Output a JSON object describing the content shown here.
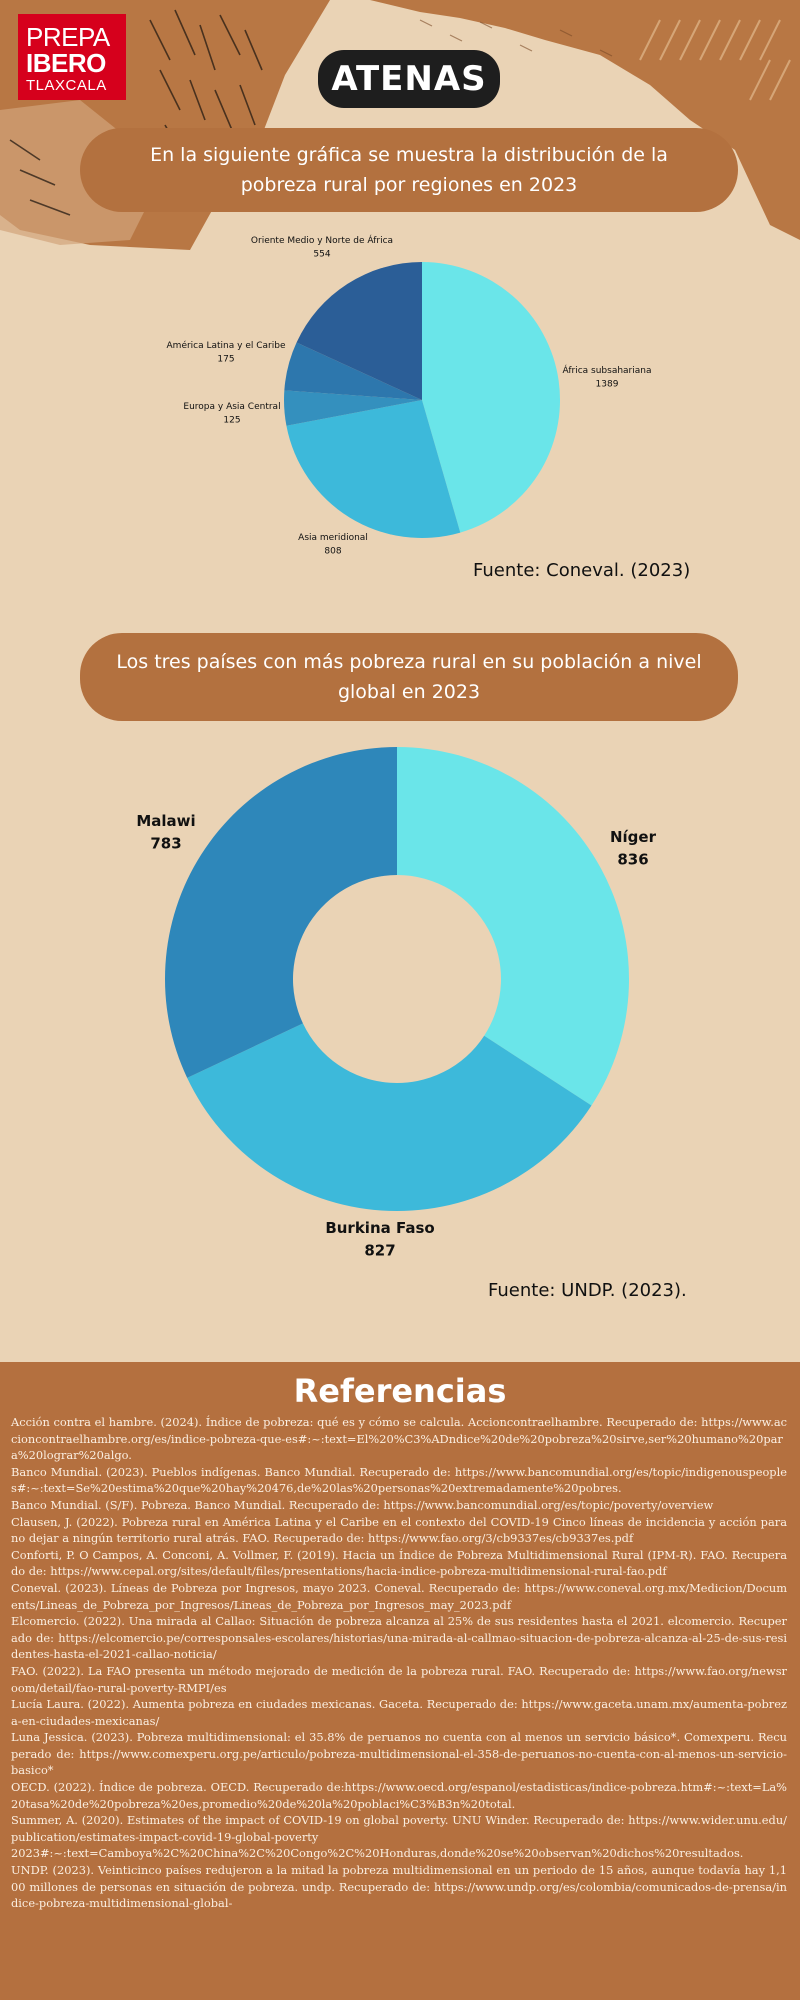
{
  "logo": {
    "line1": "PREPA",
    "line2": "IBERO",
    "line3": "TLAXCALA"
  },
  "header": {
    "title": "ATENAS"
  },
  "colors": {
    "background": "#ead3b5",
    "banner": "#b3713f",
    "logo_red": "#d6001c",
    "references_bg": "#b4703f"
  },
  "section1": {
    "banner": "En la siguiente gráfica se muestra la distribución de la pobreza rural por regiones en 2023",
    "source": "Fuente: Coneval. (2023)"
  },
  "section2": {
    "banner": "Los tres países con más pobreza rural en su población a nivel global en 2023",
    "source": "Fuente: UNDP. (2023)."
  },
  "chart_data": [
    {
      "type": "pie",
      "categories": [
        "África subsahariana",
        "Asia meridional",
        "Europa y Asia Central",
        "América Latina y el Caribe",
        "Oriente Medio y Norte de África"
      ],
      "values": [
        1389,
        808,
        125,
        175,
        554
      ],
      "colors": [
        "#6ae5e9",
        "#3db9da",
        "#3490be",
        "#2d77ad",
        "#2b5e97"
      ]
    },
    {
      "type": "pie",
      "categories": [
        "Níger",
        "Burkina Faso",
        "Malawi"
      ],
      "values": [
        836,
        827,
        783
      ],
      "colors": [
        "#6ae5e9",
        "#3db9da",
        "#2e87ba"
      ]
    }
  ],
  "references": {
    "title": "Referencias",
    "items": [
      "Acción contra el hambre. (2024). Índice de pobreza: qué es y cómo se calcula. Accioncontraelhambre. Recuperado de: https://www.accioncontraelhambre.org/es/indice-pobreza-que-es#:~:text=El%20%C3%ADndice%20de%20pobreza%20sirve,ser%20humano%20para%20lograr%20algo.",
      "Banco Mundial. (2023). Pueblos indígenas. Banco Mundial. Recuperado de: https://www.bancomundial.org/es/topic/indigenouspeoples#:~:text=Se%20estima%20que%20hay%20476,de%20las%20personas%20extremadamente%20pobres.",
      "Banco Mundial. (S/F). Pobreza. Banco Mundial. Recuperado de: https://www.bancomundial.org/es/topic/poverty/overview",
      "Clausen, J. (2022). Pobreza rural en América Latina y el Caribe en el contexto del COVID-19 Cinco líneas de incidencia y acción para no dejar a ningún territorio rural atrás. FAO. Recuperado de: https://www.fao.org/3/cb9337es/cb9337es.pdf",
      "Conforti, P. O Campos, A. Conconi, A. Vollmer, F. (2019). Hacia un Índice de Pobreza Multidimensional Rural (IPM-R). FAO. Recuperado de: https://www.cepal.org/sites/default/files/presentations/hacia-indice-pobreza-multidimensional-rural-fao.pdf",
      "Coneval. (2023). Líneas de Pobreza por Ingresos, mayo 2023. Coneval. Recuperado de: https://www.coneval.org.mx/Medicion/Documents/Lineas_de_Pobreza_por_Ingresos/Lineas_de_Pobreza_por_Ingresos_may_2023.pdf",
      "Elcomercio. (2022). Una mirada al Callao: Situación de pobreza alcanza al 25% de sus residentes hasta el 2021. elcomercio. Recuperado de: https://elcomercio.pe/corresponsales-escolares/historias/una-mirada-al-callmao-situacion-de-pobreza-alcanza-al-25-de-sus-residentes-hasta-el-2021-callao-noticia/",
      "FAO. (2022). La FAO presenta un método mejorado de medición de la pobreza rural. FAO. Recuperado de: https://www.fao.org/newsroom/detail/fao-rural-poverty-RMPI/es",
      "Lucía Laura. (2022). Aumenta pobreza en ciudades mexicanas. Gaceta. Recuperado de: https://www.gaceta.unam.mx/aumenta-pobreza-en-ciudades-mexicanas/",
      "Luna Jessica. (2023). Pobreza multidimensional: el 35.8% de peruanos no cuenta con al menos un servicio básico*. Comexperu. Recuperado de: https://www.comexperu.org.pe/articulo/pobreza-multidimensional-el-358-de-peruanos-no-cuenta-con-al-menos-un-servicio-basico*",
      "OECD. (2022). Índice de pobreza. OECD. Recuperado de:https://www.oecd.org/espanol/estadisticas/indice-pobreza.htm#:~:text=La%20tasa%20de%20pobreza%20es,promedio%20de%20la%20poblaci%C3%B3n%20total.",
      "Summer, A. (2020). Estimates of the impact of COVID-19 on global poverty. UNU Winder. Recuperado de: https://www.wider.unu.edu/publication/estimates-impact-covid-19-global-poverty",
      "2023#:~:text=Camboya%2C%20China%2C%20Congo%2C%20Honduras,donde%20se%20observan%20dichos%20resultados.",
      "UNDP. (2023). Veinticinco países redujeron a la mitad la pobreza multidimensional en un periodo de 15 años, aunque todavía hay 1,100 millones de personas en situación de pobreza. undp. Recuperado de: https://www.undp.org/es/colombia/comunicados-de-prensa/indice-pobreza-multidimensional-global-"
    ]
  }
}
